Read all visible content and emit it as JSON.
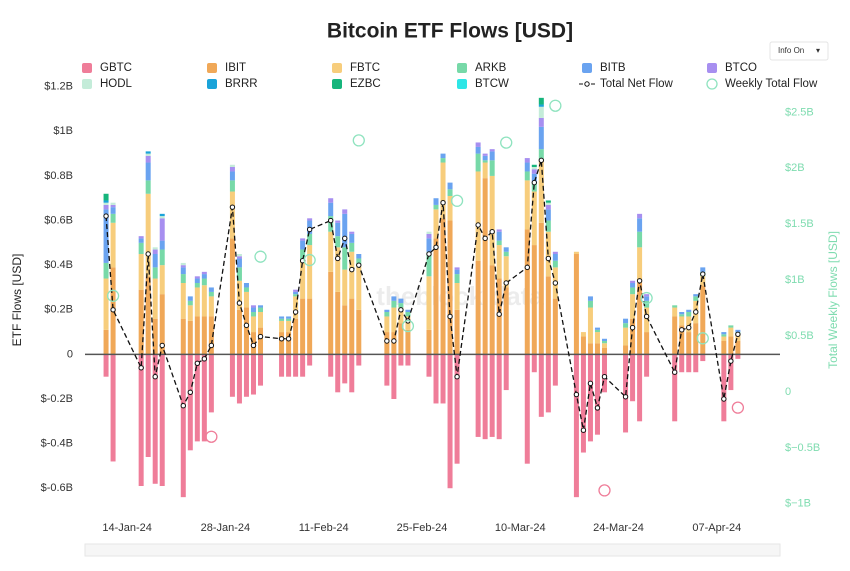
{
  "chart_data": {
    "type": "bar",
    "stacked": true,
    "title": "Bitcoin ETF Flows [USD]",
    "y_label": "ETF Flows [USD]",
    "y2_label": "Total Weekly Flows [USD]",
    "watermark": "theblock data",
    "button": "Info On",
    "x": [
      "2024-01-11",
      "2024-01-12",
      "2024-01-16",
      "2024-01-17",
      "2024-01-18",
      "2024-01-19",
      "2024-01-22",
      "2024-01-23",
      "2024-01-24",
      "2024-01-25",
      "2024-01-26",
      "2024-01-29",
      "2024-01-30",
      "2024-01-31",
      "2024-02-01",
      "2024-02-02",
      "2024-02-05",
      "2024-02-06",
      "2024-02-07",
      "2024-02-08",
      "2024-02-09",
      "2024-02-12",
      "2024-02-13",
      "2024-02-14",
      "2024-02-15",
      "2024-02-16",
      "2024-02-20",
      "2024-02-21",
      "2024-02-22",
      "2024-02-23",
      "2024-02-26",
      "2024-02-27",
      "2024-02-28",
      "2024-02-29",
      "2024-03-01",
      "2024-03-04",
      "2024-03-05",
      "2024-03-06",
      "2024-03-07",
      "2024-03-08",
      "2024-03-11",
      "2024-03-12",
      "2024-03-13",
      "2024-03-14",
      "2024-03-15",
      "2024-03-18",
      "2024-03-19",
      "2024-03-20",
      "2024-03-21",
      "2024-03-22",
      "2024-03-25",
      "2024-03-26",
      "2024-03-27",
      "2024-03-28",
      "2024-04-01",
      "2024-04-02",
      "2024-04-03",
      "2024-04-04",
      "2024-04-05",
      "2024-04-08",
      "2024-04-09",
      "2024-04-10"
    ],
    "xlim": [
      "2024-01-08",
      "2024-04-16"
    ],
    "xticks": [
      {
        "value": "2024-01-14",
        "label": "14-Jan-24"
      },
      {
        "value": "2024-01-28",
        "label": "28-Jan-24"
      },
      {
        "value": "2024-02-11",
        "label": "11-Feb-24"
      },
      {
        "value": "2024-02-25",
        "label": "25-Feb-24"
      },
      {
        "value": "2024-03-10",
        "label": "10-Mar-24"
      },
      {
        "value": "2024-03-24",
        "label": "24-Mar-24"
      },
      {
        "value": "2024-04-07",
        "label": "07-Apr-24"
      }
    ],
    "ylim": [
      -0.72,
      1.23
    ],
    "yticks": [
      {
        "value": -0.6,
        "label": "$-0.6B"
      },
      {
        "value": -0.4,
        "label": "$-0.4B"
      },
      {
        "value": -0.2,
        "label": "$-0.2B"
      },
      0,
      {
        "value": 0.2,
        "label": "$0.2B"
      },
      {
        "value": 0.4,
        "label": "$0.4B"
      },
      {
        "value": 0.6,
        "label": "$0.6B"
      },
      {
        "value": 0.8,
        "label": "$0.8B"
      },
      {
        "value": 1,
        "label": "$1B"
      },
      {
        "value": 1.2,
        "label": "$1.2B"
      }
    ],
    "y2lim": [
      -1.1,
      2.79
    ],
    "y2ticks": [
      {
        "value": -1,
        "label": "$−1B"
      },
      {
        "value": -0.5,
        "label": "$−0.5B"
      },
      0,
      {
        "value": 0.5,
        "label": "$0.5B"
      },
      {
        "value": 1,
        "label": "$1B"
      },
      {
        "value": 1.5,
        "label": "$1.5B"
      },
      {
        "value": 2,
        "label": "$2B"
      },
      {
        "value": 2.5,
        "label": "$2.5B"
      }
    ],
    "y2_color": "#7fdcb0",
    "series": [
      {
        "name": "GBTC",
        "color": "#ef7d99",
        "values": [
          -0.1,
          -0.48,
          -0.59,
          -0.46,
          -0.58,
          -0.59,
          -0.64,
          -0.43,
          -0.39,
          -0.39,
          -0.26,
          -0.19,
          -0.22,
          -0.19,
          -0.18,
          -0.14,
          -0.1,
          -0.1,
          -0.1,
          -0.1,
          -0.05,
          -0.1,
          -0.17,
          -0.13,
          -0.17,
          -0.05,
          -0.14,
          -0.2,
          -0.05,
          -0.05,
          -0.1,
          -0.22,
          -0.22,
          -0.6,
          -0.49,
          -0.37,
          -0.38,
          -0.37,
          -0.38,
          -0.16,
          -0.49,
          -0.08,
          -0.28,
          -0.26,
          -0.14,
          -0.64,
          -0.44,
          -0.39,
          -0.36,
          -0.17,
          -0.35,
          -0.21,
          -0.3,
          -0.1,
          -0.3,
          -0.08,
          -0.08,
          -0.08,
          -0.03,
          -0.3,
          -0.16,
          -0.02
        ]
      },
      {
        "name": "IBIT",
        "color": "#f0a858",
        "values": [
          0.11,
          0.39,
          0.29,
          0.35,
          0.16,
          0.27,
          0.16,
          0.15,
          0.17,
          0.17,
          0.17,
          0.52,
          0.2,
          0.21,
          0.1,
          0.12,
          0.1,
          0.1,
          0.16,
          0.25,
          0.25,
          0.37,
          0.28,
          0.22,
          0.25,
          0.2,
          0.1,
          0.1,
          0.14,
          0.11,
          0.11,
          0.52,
          0.61,
          0.6,
          0.2,
          0.42,
          0.79,
          0.4,
          0.34,
          0.3,
          0.56,
          0.49,
          0.59,
          0.35,
          0.25,
          0.45,
          0.08,
          0.05,
          0.05,
          0.03,
          0.04,
          0.16,
          0.32,
          0.1,
          0.17,
          0.13,
          0.1,
          0.14,
          0.31,
          0.06,
          0.08,
          0.06
        ]
      },
      {
        "name": "FBTC",
        "color": "#f7cd7c",
        "values": [
          0.23,
          0.2,
          0.16,
          0.37,
          0.18,
          0.13,
          0.16,
          0.07,
          0.13,
          0.14,
          0.09,
          0.21,
          0.13,
          0.07,
          0.07,
          0.07,
          0.05,
          0.05,
          0.1,
          0.17,
          0.24,
          0.18,
          0.2,
          0.16,
          0.21,
          0.2,
          0.07,
          0.11,
          0.07,
          0.06,
          0.24,
          0.13,
          0.25,
          0.11,
          0.12,
          0.4,
          0.07,
          0.4,
          0.15,
          0.14,
          0.22,
          0.24,
          0.28,
          0.2,
          0.14,
          0.01,
          0.02,
          0.16,
          0.05,
          0.02,
          0.08,
          0.11,
          0.16,
          0.11,
          0.04,
          0.04,
          0.07,
          0.1,
          0.04,
          0.02,
          0.04,
          0.03
        ]
      },
      {
        "name": "ARKB",
        "color": "#77d9a8",
        "values": [
          0.07,
          0.04,
          0.05,
          0.06,
          0.05,
          0.07,
          0.04,
          0.02,
          0.02,
          0.03,
          0.02,
          0.05,
          0.06,
          0.02,
          0.02,
          0.02,
          0.01,
          0.01,
          0.01,
          0.05,
          0.05,
          0.07,
          0.05,
          0.1,
          0.04,
          0.03,
          0.02,
          0.03,
          0.02,
          0.02,
          0.11,
          0.02,
          0.02,
          0.03,
          0.04,
          0.08,
          0.01,
          0.07,
          0.02,
          0.02,
          0.04,
          0.04,
          0.05,
          0.05,
          0.03,
          0,
          0,
          0.03,
          0.01,
          0.01,
          0.02,
          0.03,
          0.07,
          0.03,
          0.01,
          0.01,
          0.02,
          0.02,
          0.02,
          0.01,
          0.01,
          0.01
        ]
      },
      {
        "name": "BITB",
        "color": "#6aa3f0",
        "values": [
          0.24,
          0.03,
          0.02,
          0.08,
          0.06,
          0.04,
          0.03,
          0.02,
          0.02,
          0.02,
          0.02,
          0.04,
          0.04,
          0.02,
          0.02,
          0.01,
          0.01,
          0.01,
          0.01,
          0.04,
          0.06,
          0.06,
          0.06,
          0.15,
          0.04,
          0.02,
          0.01,
          0.02,
          0.02,
          0.01,
          0.06,
          0.03,
          0.02,
          0.03,
          0.02,
          0.03,
          0.02,
          0.04,
          0.04,
          0.02,
          0.04,
          0.04,
          0.1,
          0.05,
          0.03,
          0,
          0,
          0.02,
          0.01,
          0.01,
          0.02,
          0.02,
          0.06,
          0.02,
          0,
          0.01,
          0.01,
          0.01,
          0.02,
          0.01,
          0,
          0.01
        ]
      },
      {
        "name": "BTCO",
        "color": "#a78ff0",
        "values": [
          0.02,
          0.01,
          0.01,
          0.03,
          0.02,
          0.1,
          0.01,
          0,
          0.01,
          0.01,
          0,
          0.02,
          0.01,
          0,
          0.01,
          0,
          0,
          0,
          0.01,
          0.01,
          0.01,
          0.02,
          0.01,
          0.02,
          0.01,
          0,
          0,
          0,
          0,
          0,
          0.02,
          0,
          0,
          0,
          0.01,
          0.02,
          0.01,
          0.01,
          0.01,
          0,
          0.02,
          0.02,
          0.04,
          0.02,
          0.01,
          0,
          0,
          0,
          0,
          0,
          0,
          0.01,
          0.02,
          0.01,
          0,
          0,
          0,
          0,
          0,
          0,
          0,
          0
        ]
      },
      {
        "name": "HODL",
        "color": "#c4ecd9",
        "values": [
          0.01,
          0.01,
          0,
          0.01,
          0.01,
          0.01,
          0.01,
          0,
          0,
          0,
          0,
          0.01,
          0.01,
          0,
          0,
          0,
          0,
          0,
          0,
          0,
          0,
          0,
          0,
          0,
          0,
          0,
          0,
          0,
          0,
          0,
          0.01,
          0,
          0,
          0,
          0,
          0,
          0,
          0,
          0,
          0,
          0,
          0.01,
          0.05,
          0.01,
          0,
          0,
          0,
          0,
          0,
          0,
          0,
          0,
          0,
          0,
          0,
          0,
          0,
          0,
          0,
          0,
          0,
          0
        ]
      },
      {
        "name": "BRRR",
        "color": "#1aa3d9",
        "values": [
          0.01,
          0,
          0,
          0.01,
          0,
          0.01,
          0,
          0,
          0,
          0,
          0,
          0,
          0,
          0,
          0,
          0,
          0,
          0,
          0,
          0,
          0,
          0,
          0,
          0,
          0,
          0,
          0,
          0,
          0,
          0,
          0,
          0,
          0,
          0,
          0,
          0,
          0,
          0,
          0,
          0,
          0,
          0,
          0.01,
          0,
          0,
          0,
          0,
          0,
          0,
          0,
          0,
          0,
          0,
          0,
          0,
          0,
          0,
          0,
          0,
          0,
          0,
          0
        ]
      },
      {
        "name": "EZBC",
        "color": "#16b57c",
        "values": [
          0.03,
          0,
          0,
          0,
          0,
          0,
          0,
          0,
          0,
          0,
          0,
          0,
          0,
          0,
          0,
          0,
          0,
          0,
          0,
          0,
          0,
          0,
          0,
          0,
          0,
          0,
          0,
          0,
          0,
          0,
          0,
          0,
          0,
          0,
          0,
          0,
          0,
          0,
          0,
          0,
          0,
          0.01,
          0.03,
          0.01,
          0,
          0,
          0,
          0,
          0,
          0,
          0,
          0,
          0,
          0,
          0,
          0,
          0,
          0,
          0,
          0,
          0,
          0
        ]
      },
      {
        "name": "BTCW",
        "color": "#2ee6e6",
        "values": [
          0,
          0,
          0,
          0,
          0,
          0,
          0,
          0,
          0,
          0,
          0,
          0,
          0,
          0,
          0,
          0,
          0,
          0,
          0,
          0,
          0,
          0,
          0,
          0,
          0,
          0,
          0,
          0,
          0,
          0,
          0,
          0,
          0,
          0,
          0,
          0,
          0,
          0,
          0,
          0,
          0,
          0,
          0,
          0,
          0,
          0,
          0,
          0,
          0,
          0,
          0,
          0,
          0,
          0,
          0,
          0,
          0,
          0,
          0,
          0,
          0,
          0
        ]
      },
      {
        "name": "Total Net Flow",
        "type": "line",
        "color": "#111111",
        "values": [
          0.62,
          0.2,
          -0.06,
          0.45,
          -0.1,
          0.04,
          -0.23,
          -0.17,
          -0.04,
          -0.02,
          0.04,
          0.66,
          0.23,
          0.13,
          0.04,
          0.08,
          0.07,
          0.07,
          0.19,
          0.42,
          0.56,
          0.6,
          0.43,
          0.52,
          0.38,
          0.4,
          0.06,
          0.06,
          0.2,
          0.15,
          0.45,
          0.48,
          0.68,
          0.17,
          -0.1,
          0.58,
          0.52,
          0.55,
          0.18,
          0.32,
          0.39,
          0.77,
          0.87,
          0.43,
          0.32,
          -0.18,
          -0.34,
          -0.13,
          -0.24,
          -0.1,
          -0.19,
          0.12,
          0.33,
          0.17,
          -0.08,
          0.11,
          0.12,
          0.19,
          0.36,
          -0.2,
          -0.03,
          0.09
        ]
      },
      {
        "name": "Weekly Total Flow",
        "type": "scatter",
        "axis": "y2",
        "color": "#8fe3bf",
        "x": [
          "2024-01-12",
          "2024-01-26",
          "2024-02-02",
          "2024-02-09",
          "2024-02-16",
          "2024-02-23",
          "2024-03-01",
          "2024-03-08",
          "2024-03-15",
          "2024-03-22",
          "2024-03-28",
          "2024-04-05",
          "2024-04-10"
        ],
        "values": [
          0.86,
          -0.4,
          1.21,
          1.18,
          2.25,
          0.59,
          1.71,
          2.23,
          2.56,
          -0.88,
          0.84,
          0.48,
          -0.14
        ]
      }
    ]
  }
}
